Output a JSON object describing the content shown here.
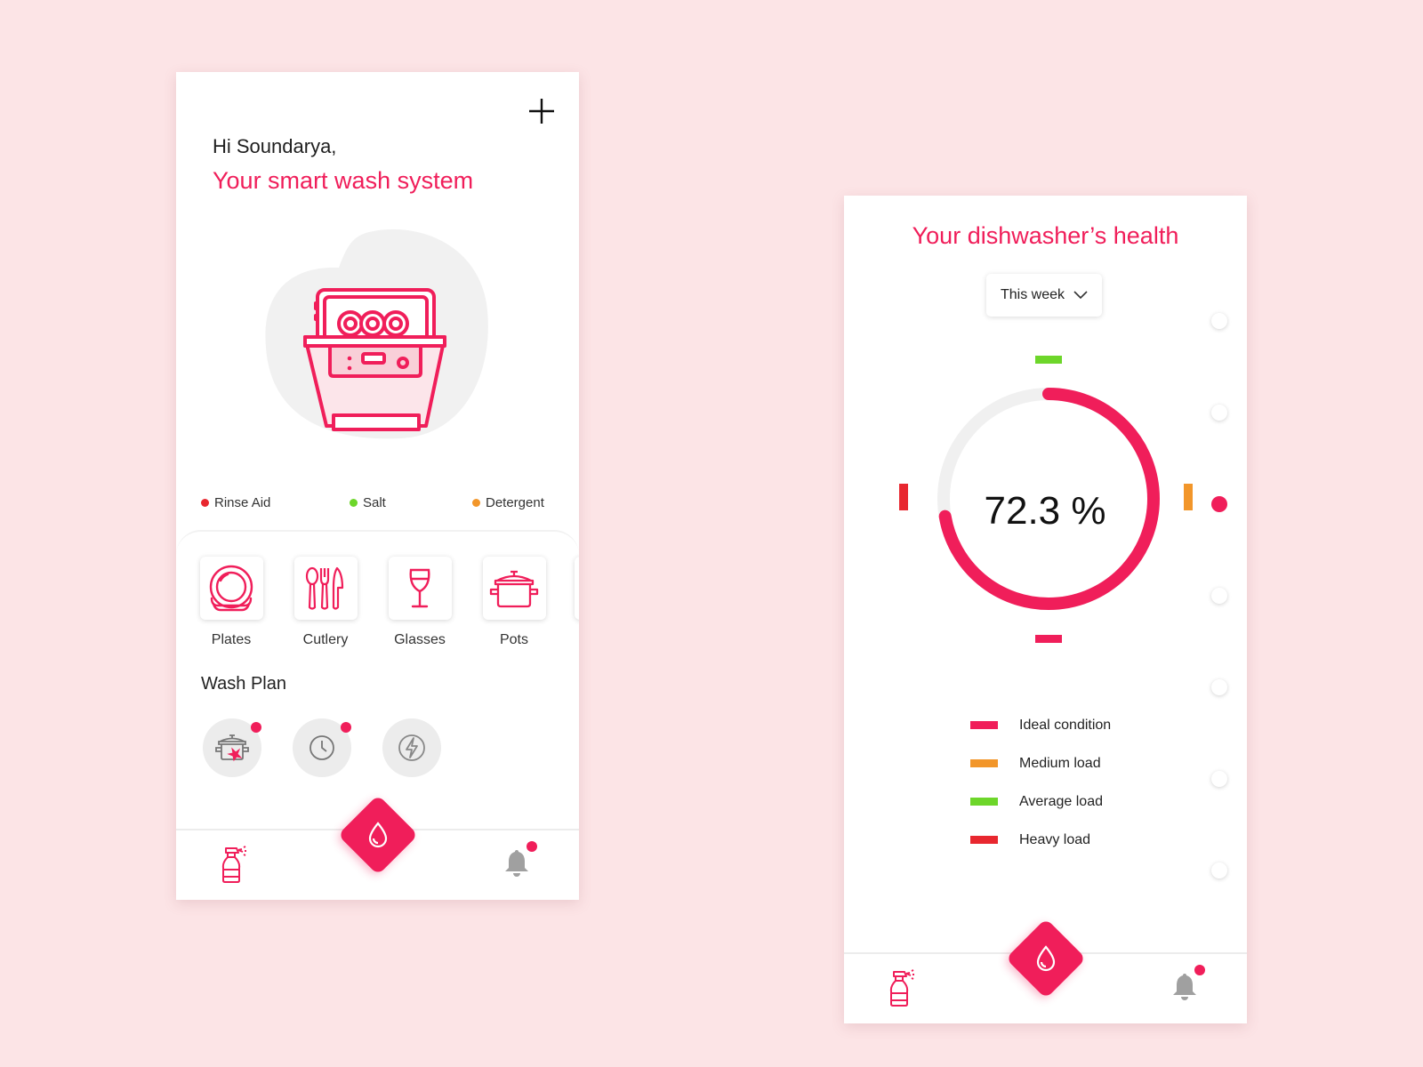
{
  "home": {
    "greeting": "Hi Soundarya,",
    "headline": "Your smart wash system",
    "levels": [
      {
        "label": "Rinse Aid",
        "color": "#e8272f"
      },
      {
        "label": "Salt",
        "color": "#6dd62a"
      },
      {
        "label": "Detergent",
        "color": "#f2962a"
      }
    ],
    "categories": [
      {
        "label": "Plates",
        "icon": "plates-icon"
      },
      {
        "label": "Cutlery",
        "icon": "cutlery-icon"
      },
      {
        "label": "Glasses",
        "icon": "glasses-icon"
      },
      {
        "label": "Pots",
        "icon": "pot-icon"
      }
    ],
    "wash_plan_title": "Wash Plan",
    "wash_plan": [
      {
        "icon": "pot-stain-icon",
        "has_badge": true
      },
      {
        "icon": "clock-icon",
        "has_badge": true
      },
      {
        "icon": "lightning-icon",
        "has_badge": false
      }
    ]
  },
  "health": {
    "title": "Your dishwasher’s health",
    "period": "This week",
    "value": 72.3,
    "value_label": "72.3 %",
    "timeline_points": 7,
    "timeline_active_index": 2,
    "legend": [
      {
        "label": "Ideal condition",
        "color": "#f01e5a"
      },
      {
        "label": "Medium load",
        "color": "#f2962a"
      },
      {
        "label": "Average load",
        "color": "#6dd62a"
      },
      {
        "label": "Heavy load",
        "color": "#e8272f"
      }
    ]
  },
  "colors": {
    "accent": "#f01e5a",
    "background": "#fce4e6",
    "track": "#f0f0f0",
    "icon_gray": "#9a9a9a"
  },
  "nav": {
    "left_icon": "spray-bottle-icon",
    "center_icon": "water-drop-icon",
    "right_icon": "bell-icon",
    "notification_badge": true
  }
}
